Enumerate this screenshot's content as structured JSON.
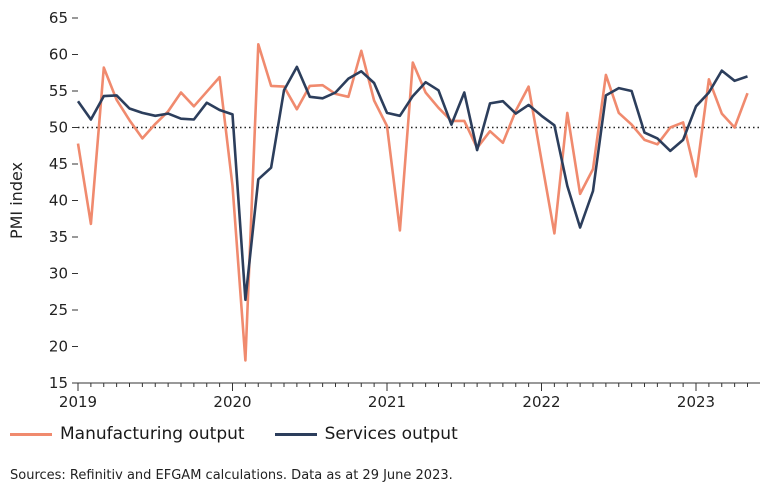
{
  "chart_data": {
    "type": "line",
    "ylabel": "PMI index",
    "ylim": [
      15,
      65
    ],
    "yticks": [
      15,
      20,
      25,
      30,
      35,
      40,
      45,
      50,
      55,
      60,
      65
    ],
    "x_start": "2019-01",
    "xticks": [
      "2019",
      "2020",
      "2021",
      "2022",
      "2023"
    ],
    "reference_line": 50,
    "grid": false,
    "legend_position": "bottom",
    "series": [
      {
        "name": "Manufacturing output",
        "color": "#f08a6e",
        "values": [
          47.8,
          36.8,
          58.2,
          53.8,
          51.0,
          48.5,
          50.5,
          52.2,
          54.8,
          52.9,
          54.9,
          56.9,
          42.0,
          18.1,
          61.4,
          55.7,
          55.6,
          52.5,
          55.7,
          55.8,
          54.6,
          54.2,
          60.5,
          53.7,
          50.2,
          35.9,
          58.9,
          54.8,
          52.7,
          50.9,
          50.9,
          47.2,
          49.5,
          47.9,
          52.3,
          55.6,
          45.5,
          35.5,
          52.0,
          40.9,
          44.3,
          57.2,
          52.0,
          50.4,
          48.3,
          47.7,
          50.0,
          50.7,
          43.3,
          56.6,
          51.9,
          50.0,
          54.7
        ]
      },
      {
        "name": "Services output",
        "color": "#2c3e5c",
        "values": [
          53.6,
          51.1,
          54.3,
          54.4,
          52.6,
          52.0,
          51.6,
          51.9,
          51.2,
          51.1,
          53.4,
          52.4,
          51.8,
          26.4,
          42.9,
          44.5,
          55.1,
          58.3,
          54.2,
          54.0,
          54.8,
          56.7,
          57.7,
          56.1,
          52.0,
          51.6,
          54.3,
          56.2,
          55.1,
          50.4,
          54.8,
          46.9,
          53.3,
          53.6,
          51.9,
          53.1,
          51.6,
          50.3,
          42.0,
          36.3,
          41.3,
          54.4,
          55.4,
          55.0,
          49.3,
          48.5,
          46.8,
          48.3,
          52.9,
          54.8,
          57.8,
          56.4,
          57.0
        ]
      }
    ]
  },
  "legend": {
    "manufacturing": "Manufacturing output",
    "services": "Services output"
  },
  "source_note": "Sources: Refinitiv and EFGAM calculations. Data as at 29 June 2023."
}
